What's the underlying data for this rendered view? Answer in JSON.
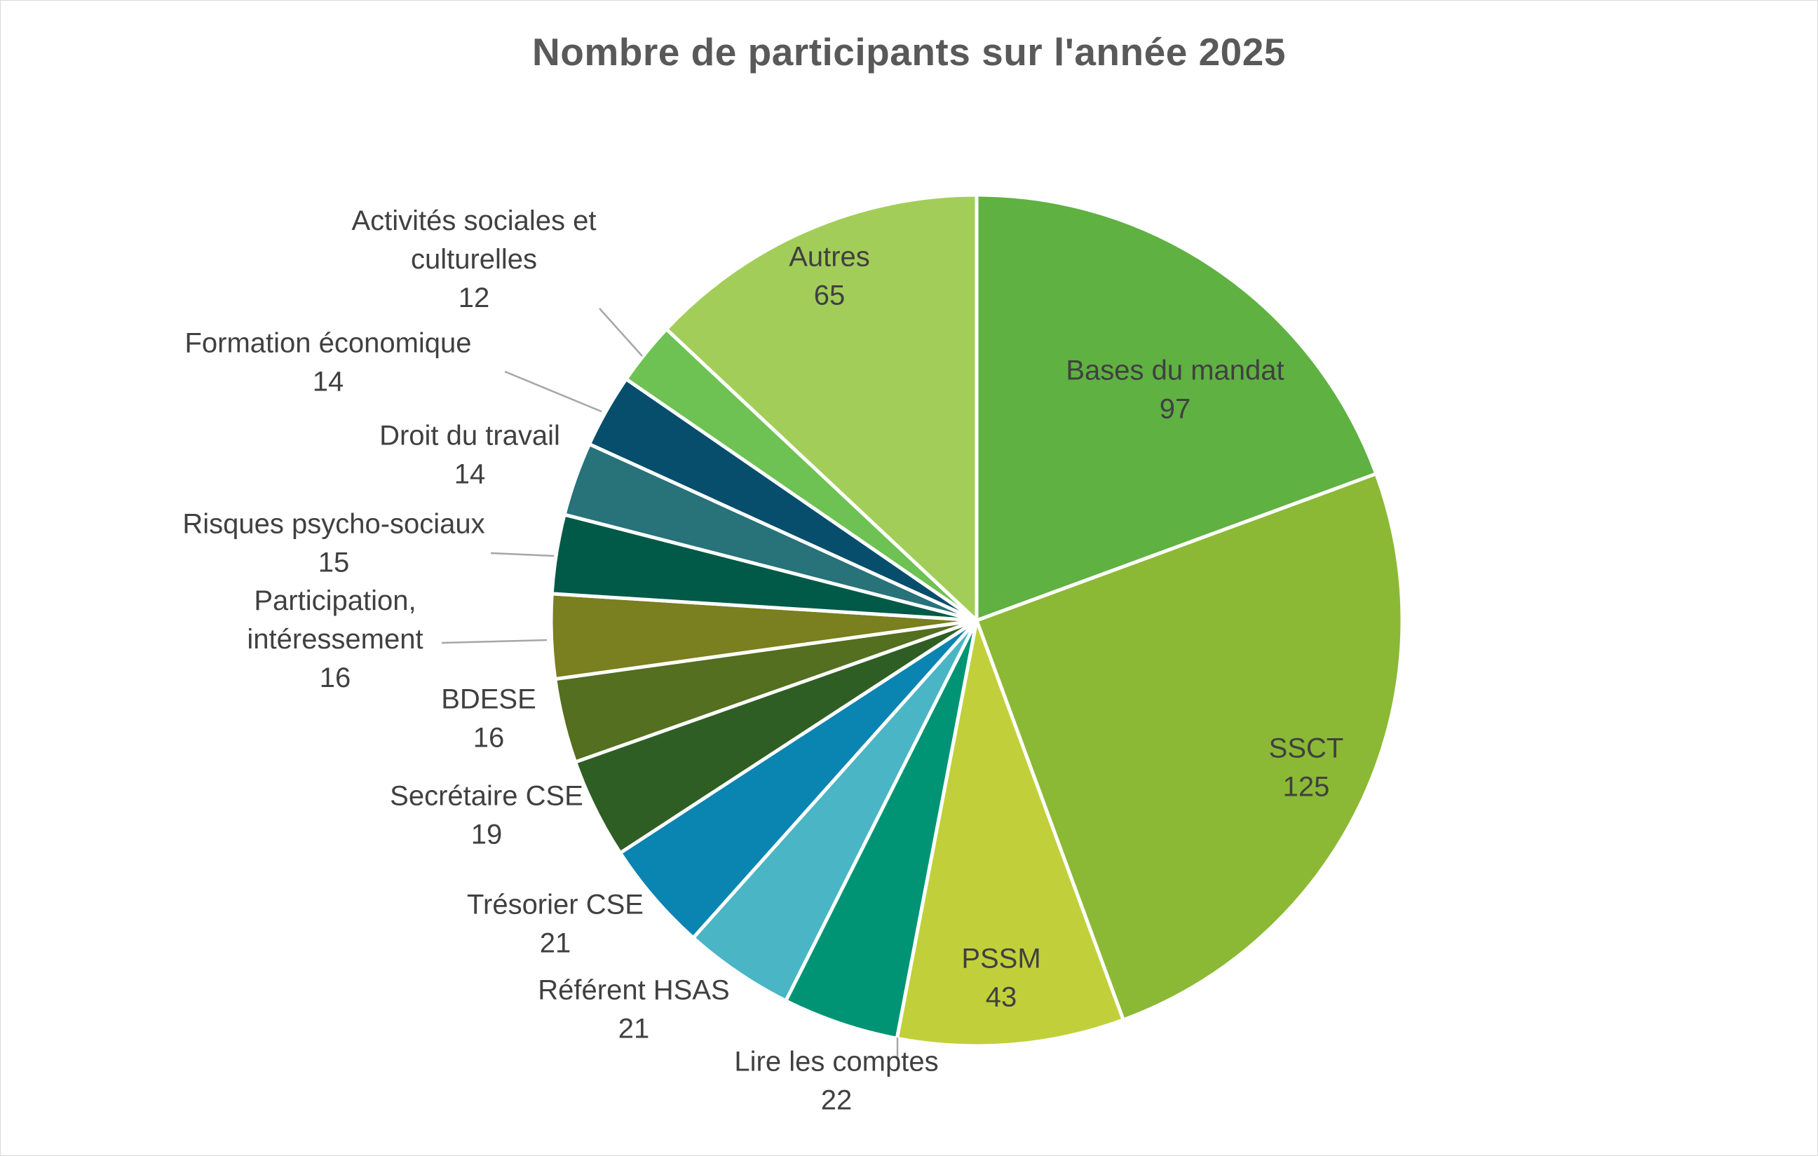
{
  "chart_data": {
    "type": "pie",
    "title": "Nombre de participants sur l'année 2025",
    "slices": [
      {
        "label": "Bases du mandat",
        "lines": [
          "Bases du mandat"
        ],
        "value": 97,
        "value_text": "97",
        "color": "#5fb142"
      },
      {
        "label": "SSCT",
        "lines": [
          "SSCT"
        ],
        "value": 125,
        "value_text": "125",
        "color": "#8bb935"
      },
      {
        "label": "PSSM",
        "lines": [
          "PSSM"
        ],
        "value": 43,
        "value_text": "43",
        "color": "#c1d03a"
      },
      {
        "label": "Lire les comptes",
        "lines": [
          "Lire les comptes"
        ],
        "value": 22,
        "value_text": "22",
        "color": "#009474"
      },
      {
        "label": "Référent HSAS",
        "lines": [
          "Référent HSAS"
        ],
        "value": 21,
        "value_text": "21",
        "color": "#4ab5c4"
      },
      {
        "label": "Trésorier CSE",
        "lines": [
          "Trésorier CSE"
        ],
        "value": 21,
        "value_text": "21",
        "color": "#0a84b0"
      },
      {
        "label": "Secrétaire CSE",
        "lines": [
          "Secrétaire CSE"
        ],
        "value": 19,
        "value_text": "19",
        "color": "#2f5e24"
      },
      {
        "label": "BDESE",
        "lines": [
          "BDESE"
        ],
        "value": 16,
        "value_text": "16",
        "color": "#536f1f"
      },
      {
        "label": "Participation, intéressement",
        "lines": [
          "Participation,",
          "intéressement"
        ],
        "value": 16,
        "value_text": "16",
        "color": "#7a7f1f"
      },
      {
        "label": "Risques psycho-sociaux",
        "lines": [
          "Risques psycho-sociaux"
        ],
        "value": 15,
        "value_text": "15",
        "color": "#005a47"
      },
      {
        "label": "Droit du travail",
        "lines": [
          "Droit du travail"
        ],
        "value": 14,
        "value_text": "14",
        "color": "#28727a"
      },
      {
        "label": "Formation économique",
        "lines": [
          "Formation économique"
        ],
        "value": 14,
        "value_text": "14",
        "color": "#064e6c"
      },
      {
        "label": "Activités sociales et culturelles",
        "lines": [
          "Activités sociales et",
          "culturelles"
        ],
        "value": 12,
        "value_text": "12",
        "color": "#6ec153"
      },
      {
        "label": "Autres",
        "lines": [
          "Autres"
        ],
        "value": 65,
        "value_text": "65",
        "color": "#a3cd59"
      }
    ],
    "start_angle_deg": 0,
    "direction": "clockwise",
    "legend": "none",
    "data_labels": "category name and value"
  }
}
